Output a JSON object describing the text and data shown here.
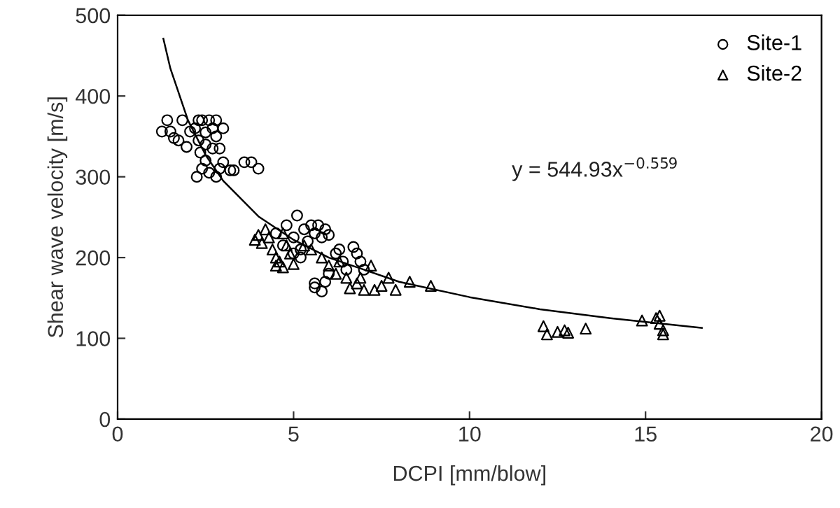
{
  "chart_data": {
    "type": "scatter",
    "xlabel": "DCPI [mm/blow]",
    "ylabel": "Shear wave velocity [m/s]",
    "xlim": [
      0,
      20
    ],
    "ylim": [
      0,
      500
    ],
    "xticks": [
      0,
      5,
      10,
      15,
      20
    ],
    "yticks": [
      0,
      100,
      200,
      300,
      400,
      500
    ],
    "grid": false,
    "legend": "top right",
    "annotations": [
      "y = 544.93x$^{−0.559}$"
    ],
    "series": [
      {
        "name": "Site-1",
        "color": "#000000",
        "marker": "circle",
        "x": [
          1.26,
          1.41,
          1.5,
          1.6,
          1.73,
          1.84,
          1.96,
          2.06,
          2.2,
          2.3,
          2.3,
          2.35,
          2.4,
          2.25,
          2.4,
          2.5,
          2.5,
          2.5,
          2.6,
          2.6,
          2.7,
          2.7,
          2.8,
          2.8,
          2.8,
          2.9,
          2.9,
          3.0,
          3.0,
          3.2,
          3.3,
          3.6,
          3.8,
          4.0,
          4.5,
          4.7,
          4.8,
          5.0,
          5.0,
          5.1,
          5.2,
          5.2,
          5.3,
          5.4,
          5.5,
          5.6,
          5.7,
          5.8,
          5.9,
          6.0,
          5.6,
          5.6,
          5.8,
          5.9,
          6.0,
          6.2,
          6.3,
          6.4,
          6.5,
          6.7,
          6.8,
          6.9,
          7.0
        ],
        "values": [
          356,
          370,
          356,
          348,
          345,
          370,
          337,
          356,
          360,
          370,
          345,
          330,
          310,
          300,
          370,
          355,
          340,
          320,
          370,
          305,
          360,
          335,
          370,
          350,
          300,
          335,
          310,
          360,
          318,
          308,
          308,
          318,
          318,
          310,
          230,
          215,
          240,
          225,
          205,
          252,
          210,
          200,
          235,
          220,
          240,
          230,
          240,
          225,
          235,
          228,
          168,
          163,
          158,
          170,
          180,
          205,
          210,
          195,
          185,
          213,
          205,
          195,
          185
        ]
      },
      {
        "name": "Site-2",
        "color": "#000000",
        "marker": "triangle",
        "x": [
          3.9,
          4.0,
          4.1,
          4.2,
          4.3,
          4.4,
          4.5,
          4.5,
          4.6,
          4.7,
          4.7,
          4.8,
          4.9,
          5.0,
          5.3,
          5.5,
          5.8,
          6.0,
          6.2,
          6.3,
          6.5,
          6.6,
          6.8,
          6.9,
          7.0,
          7.2,
          7.3,
          7.5,
          7.7,
          7.9,
          8.3,
          8.9,
          12.1,
          12.2,
          12.5,
          12.7,
          12.8,
          13.3,
          14.9,
          15.3,
          15.4,
          15.4,
          15.5,
          15.5
        ],
        "values": [
          222,
          228,
          218,
          235,
          225,
          210,
          200,
          190,
          195,
          188,
          230,
          215,
          205,
          192,
          215,
          210,
          200,
          190,
          180,
          195,
          175,
          162,
          168,
          175,
          160,
          190,
          160,
          165,
          175,
          160,
          170,
          165,
          115,
          105,
          108,
          110,
          107,
          112,
          122,
          125,
          128,
          118,
          110,
          105
        ]
      },
      {
        "type": "line",
        "color": "#000000",
        "x": [
          1.3,
          1.5,
          2,
          2.5,
          3,
          4,
          5,
          6,
          8,
          10,
          12,
          14,
          16.6
        ],
        "values": [
          471,
          434,
          370,
          327,
          295,
          251,
          222,
          200,
          170,
          151,
          136,
          125,
          113
        ]
      }
    ]
  }
}
